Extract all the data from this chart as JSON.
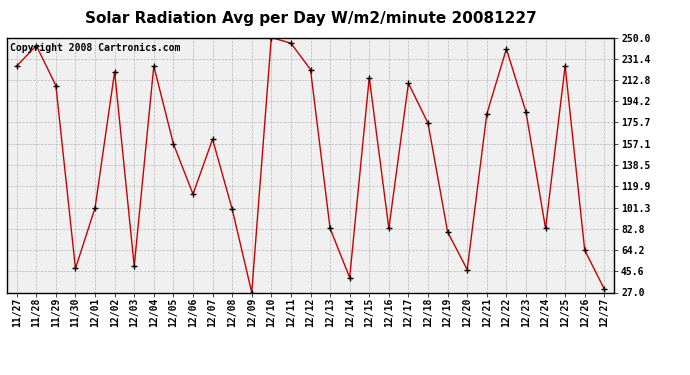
{
  "title": "Solar Radiation Avg per Day W/m2/minute 20081227",
  "copyright": "Copyright 2008 Cartronics.com",
  "x_labels": [
    "11/27",
    "11/28",
    "11/29",
    "11/30",
    "12/01",
    "12/02",
    "12/03",
    "12/04",
    "12/05",
    "12/06",
    "12/07",
    "12/08",
    "12/09",
    "12/10",
    "12/11",
    "12/12",
    "12/13",
    "12/14",
    "12/15",
    "12/16",
    "12/17",
    "12/18",
    "12/19",
    "12/20",
    "12/21",
    "12/22",
    "12/23",
    "12/24",
    "12/25",
    "12/26",
    "12/27"
  ],
  "y_values": [
    225,
    243,
    208,
    48,
    101,
    220,
    50,
    225,
    157,
    113,
    161,
    100,
    27,
    250,
    245,
    222,
    83,
    40,
    215,
    83,
    210,
    175,
    80,
    47,
    183,
    240,
    185,
    83,
    225,
    64,
    30
  ],
  "y_min": 27.0,
  "y_max": 250.0,
  "y_ticks": [
    27.0,
    45.6,
    64.2,
    82.8,
    101.3,
    119.9,
    138.5,
    157.1,
    175.7,
    194.2,
    212.8,
    231.4,
    250.0
  ],
  "line_color": "#cc0000",
  "marker_color": "#000000",
  "bg_color": "#ffffff",
  "plot_bg_color": "#f0f0f0",
  "grid_color": "#aaaaaa",
  "title_fontsize": 11,
  "tick_fontsize": 7,
  "copyright_fontsize": 7
}
